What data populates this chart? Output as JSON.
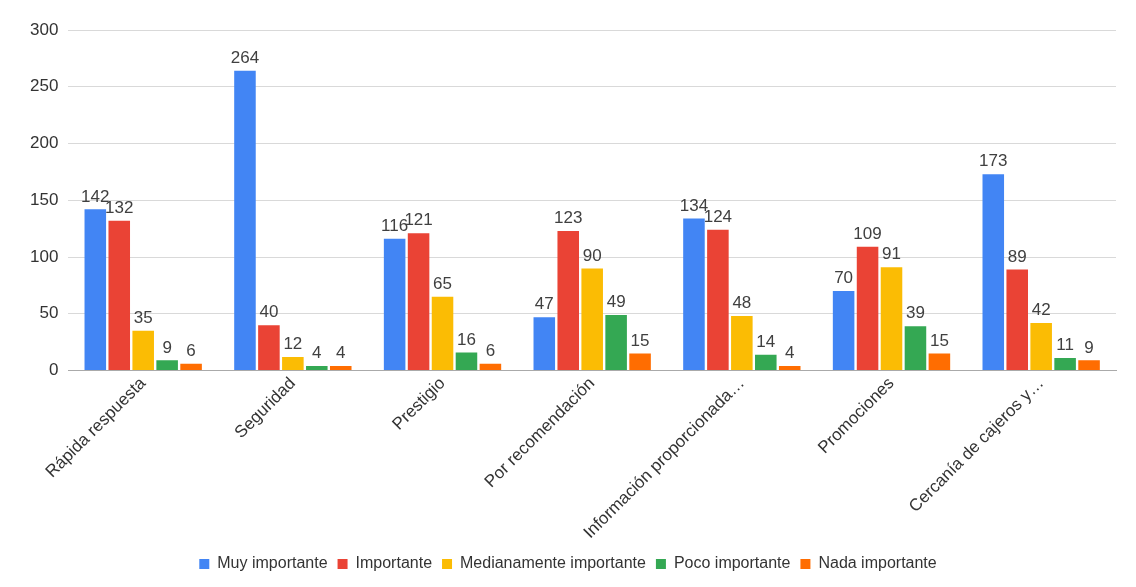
{
  "chart_data": {
    "type": "bar",
    "categories": [
      "Rápida respuesta",
      "Seguridad",
      "Prestigio",
      "Por recomendación",
      "Información proporcionada…",
      "Promociones",
      "Cercanía de cajeros y…"
    ],
    "series": [
      {
        "name": "Muy importante",
        "color": "#4285f4",
        "values": [
          142,
          264,
          116,
          47,
          134,
          70,
          173
        ]
      },
      {
        "name": "Importante",
        "color": "#ea4335",
        "values": [
          132,
          40,
          121,
          123,
          124,
          109,
          89
        ]
      },
      {
        "name": "Medianamente importante",
        "color": "#fbbc04",
        "values": [
          35,
          12,
          65,
          90,
          48,
          91,
          42
        ]
      },
      {
        "name": "Poco importante",
        "color": "#34a853",
        "values": [
          9,
          4,
          16,
          49,
          14,
          39,
          11
        ]
      },
      {
        "name": "Nada importante",
        "color": "#ff6d01",
        "values": [
          6,
          4,
          6,
          15,
          4,
          15,
          9
        ]
      }
    ],
    "ylim": [
      0,
      300
    ],
    "yticks": [
      0,
      50,
      100,
      150,
      200,
      250,
      300
    ],
    "grid": "y",
    "legend": "bottom",
    "data_labels": true
  }
}
